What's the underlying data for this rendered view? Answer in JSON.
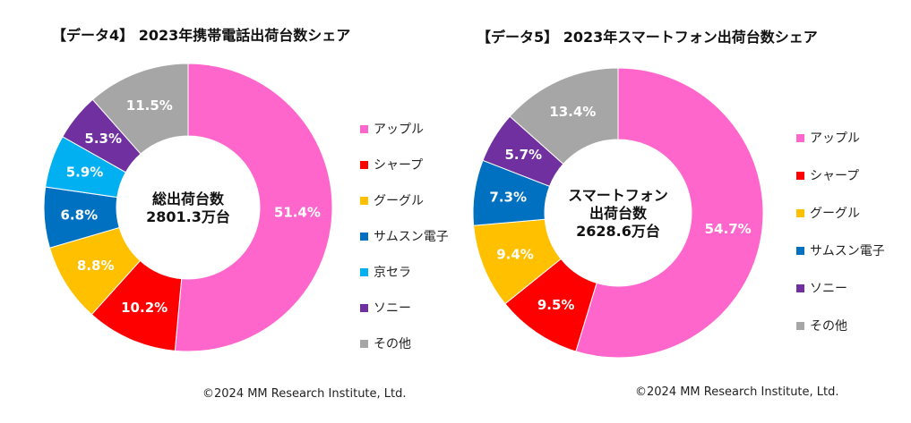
{
  "chart_data": [
    {
      "type": "pie",
      "variant": "donut",
      "title": "【データ4】 2023年携帯電話出荷台数シェア",
      "center_label": [
        "総出荷台数",
        "2801.3万台"
      ],
      "categories": [
        "アップル",
        "シャープ",
        "グーグル",
        "サムスン電子",
        "京セラ",
        "ソニー",
        "その他"
      ],
      "values": [
        51.4,
        10.2,
        8.8,
        6.8,
        5.9,
        5.3,
        11.5
      ],
      "value_labels": [
        "51.4%",
        "10.2%",
        "8.8%",
        "6.8%",
        "5.9%",
        "5.3%",
        "11.5%"
      ],
      "colors": [
        "#ff66cc",
        "#ff0000",
        "#ffc000",
        "#0070c0",
        "#00b0f0",
        "#7030a0",
        "#a6a6a6"
      ],
      "legend": "right",
      "footer": "©2024 MM Research Institute, Ltd."
    },
    {
      "type": "pie",
      "variant": "donut",
      "title": "【データ5】 2023年スマートフォン出荷台数シェア",
      "center_label": [
        "スマートフォン",
        "出荷台数",
        "2628.6万台"
      ],
      "categories": [
        "アップル",
        "シャープ",
        "グーグル",
        "サムスン電子",
        "ソニー",
        "その他"
      ],
      "values": [
        54.7,
        9.5,
        9.4,
        7.3,
        5.7,
        13.4
      ],
      "value_labels": [
        "54.7%",
        "9.5%",
        "9.4%",
        "7.3%",
        "5.7%",
        "13.4%"
      ],
      "colors": [
        "#ff66cc",
        "#ff0000",
        "#ffc000",
        "#0070c0",
        "#7030a0",
        "#a6a6a6"
      ],
      "legend": "right",
      "footer": "©2024 MM Research Institute, Ltd."
    }
  ]
}
